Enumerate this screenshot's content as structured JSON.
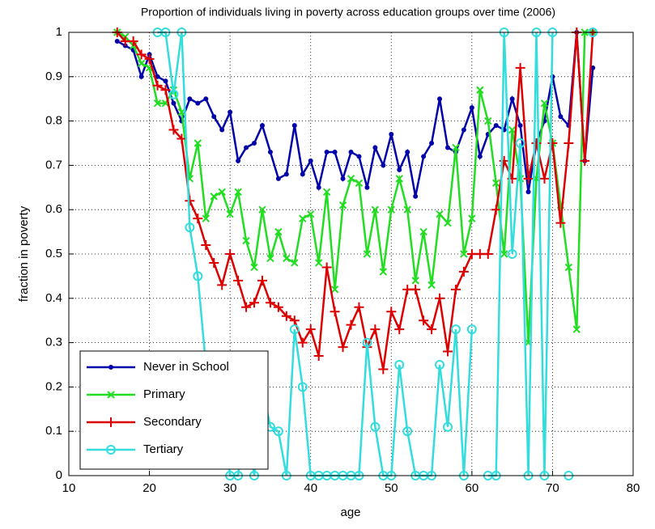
{
  "chart_data": {
    "type": "line",
    "title": "Proportion of individuals living in poverty across education groups over time (2006)",
    "x_label": "age",
    "y_label": "fraction in poverty",
    "x": [
      16,
      17,
      18,
      19,
      20,
      21,
      22,
      23,
      24,
      25,
      26,
      27,
      28,
      29,
      30,
      31,
      32,
      33,
      34,
      35,
      36,
      37,
      38,
      39,
      40,
      41,
      42,
      43,
      44,
      45,
      46,
      47,
      48,
      49,
      50,
      51,
      52,
      53,
      54,
      55,
      56,
      57,
      58,
      59,
      60,
      61,
      62,
      63,
      64,
      65,
      66,
      67,
      68,
      69,
      70,
      71,
      72,
      73,
      74,
      75
    ],
    "series": [
      {
        "name": "Never in School",
        "color": "#0000aa",
        "marker": "dot",
        "values": [
          0.98,
          0.97,
          0.96,
          0.9,
          0.95,
          0.9,
          0.89,
          0.84,
          0.8,
          0.85,
          0.84,
          0.85,
          0.81,
          0.78,
          0.82,
          0.71,
          0.74,
          0.75,
          0.79,
          0.73,
          0.67,
          0.68,
          0.79,
          0.68,
          0.71,
          0.65,
          0.73,
          0.73,
          0.67,
          0.73,
          0.72,
          0.65,
          0.74,
          0.7,
          0.77,
          0.69,
          0.73,
          0.63,
          0.72,
          0.75,
          0.85,
          0.74,
          0.73,
          0.78,
          0.83,
          0.72,
          0.77,
          0.79,
          0.78,
          0.85,
          0.79,
          0.64,
          0.75,
          0.8,
          0.9,
          0.81,
          0.79,
          1.0,
          0.71,
          0.92
        ]
      },
      {
        "name": "Primary",
        "color": "#22dd22",
        "marker": "x",
        "values": [
          1.0,
          0.99,
          0.97,
          0.93,
          0.92,
          0.84,
          0.84,
          0.87,
          0.82,
          0.67,
          0.75,
          0.58,
          0.63,
          0.64,
          0.59,
          0.64,
          0.53,
          0.47,
          0.6,
          0.49,
          0.55,
          0.49,
          0.48,
          0.58,
          0.59,
          0.48,
          0.64,
          0.42,
          0.61,
          0.67,
          0.66,
          0.5,
          0.6,
          0.46,
          0.6,
          0.67,
          0.6,
          0.44,
          0.55,
          0.43,
          0.59,
          0.57,
          0.74,
          0.5,
          0.58,
          0.87,
          0.8,
          0.66,
          0.5,
          0.78,
          0.67,
          0.3,
          0.67,
          0.84,
          0.75,
          0.61,
          0.47,
          0.33,
          1.0,
          1.0
        ]
      },
      {
        "name": "Secondary",
        "color": "#dd0000",
        "marker": "plus",
        "values": [
          1.0,
          0.98,
          0.98,
          0.95,
          0.94,
          0.88,
          0.87,
          0.78,
          0.76,
          0.62,
          0.58,
          0.52,
          0.48,
          0.43,
          0.5,
          0.44,
          0.38,
          0.39,
          0.44,
          0.39,
          0.38,
          0.36,
          0.35,
          0.3,
          0.33,
          0.27,
          0.47,
          0.37,
          0.29,
          0.34,
          0.38,
          0.29,
          0.33,
          0.24,
          0.37,
          0.33,
          0.42,
          0.42,
          0.35,
          0.33,
          0.4,
          0.28,
          0.42,
          0.46,
          0.5,
          0.5,
          0.5,
          0.6,
          0.71,
          0.67,
          0.92,
          0.67,
          0.75,
          0.67,
          0.75,
          0.57,
          0.75,
          1.0,
          0.71,
          1.0
        ]
      },
      {
        "name": "Tertiary",
        "color": "#33dddd",
        "marker": "circle",
        "values": [
          null,
          null,
          null,
          null,
          null,
          1.0,
          1.0,
          0.86,
          1.0,
          0.56,
          0.45,
          0.25,
          0.27,
          0.17,
          0,
          0,
          0.17,
          0,
          0.2,
          0.11,
          0.1,
          0,
          0.33,
          0.2,
          0,
          0,
          0,
          0,
          0,
          0,
          0,
          0.3,
          0.11,
          0,
          0,
          0.25,
          0.1,
          0,
          0,
          0,
          0.25,
          0.11,
          0.33,
          0,
          0.33,
          null,
          0,
          0,
          1.0,
          0.5,
          0.75,
          0,
          1.0,
          0,
          1.0,
          null,
          0,
          null,
          null,
          1.0
        ]
      }
    ],
    "xlim": [
      10,
      80
    ],
    "ylim": [
      0,
      1
    ],
    "xticks": [
      10,
      20,
      30,
      40,
      50,
      60,
      70,
      80
    ],
    "yticks": [
      0,
      0.1,
      0.2,
      0.3,
      0.4,
      0.5,
      0.6,
      0.7,
      0.8,
      0.9,
      1
    ],
    "grid": true,
    "legend_position": "lower left"
  }
}
